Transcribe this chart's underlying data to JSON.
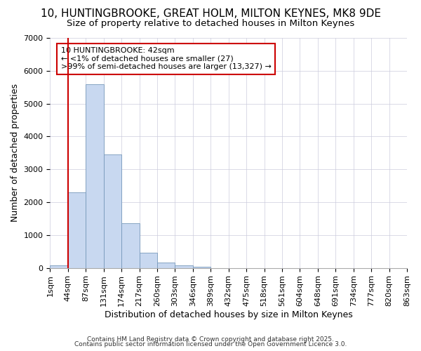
{
  "title1": "10, HUNTINGBROOKE, GREAT HOLM, MILTON KEYNES, MK8 9DE",
  "title2": "Size of property relative to detached houses in Milton Keynes",
  "xlabel": "Distribution of detached houses by size in Milton Keynes",
  "ylabel": "Number of detached properties",
  "bar_values": [
    70,
    2300,
    5580,
    3450,
    1350,
    460,
    170,
    70,
    30,
    0,
    0,
    0,
    0,
    0,
    0,
    0,
    0,
    0,
    0,
    0
  ],
  "x_labels": [
    "1sqm",
    "44sqm",
    "87sqm",
    "131sqm",
    "174sqm",
    "217sqm",
    "260sqm",
    "303sqm",
    "346sqm",
    "389sqm",
    "432sqm",
    "475sqm",
    "518sqm",
    "561sqm",
    "604sqm",
    "648sqm",
    "691sqm",
    "734sqm",
    "777sqm",
    "820sqm",
    "863sqm"
  ],
  "bar_color": "#c8d8f0",
  "bar_edge_color": "#7799bb",
  "bg_color": "#ffffff",
  "grid_color": "#ccccdd",
  "vline_color": "#cc0000",
  "annotation_text": "10 HUNTINGBROOKE: 42sqm\n← <1% of detached houses are smaller (27)\n>99% of semi-detached houses are larger (13,327) →",
  "annotation_box_color": "#cc0000",
  "ylim": [
    0,
    7000
  ],
  "yticks": [
    0,
    1000,
    2000,
    3000,
    4000,
    5000,
    6000,
    7000
  ],
  "footer1": "Contains HM Land Registry data © Crown copyright and database right 2025.",
  "footer2": "Contains public sector information licensed under the Open Government Licence 3.0.",
  "title1_fontsize": 11,
  "title2_fontsize": 9.5,
  "axis_label_fontsize": 9,
  "tick_fontsize": 8,
  "footer_fontsize": 6.5,
  "annotation_fontsize": 8
}
